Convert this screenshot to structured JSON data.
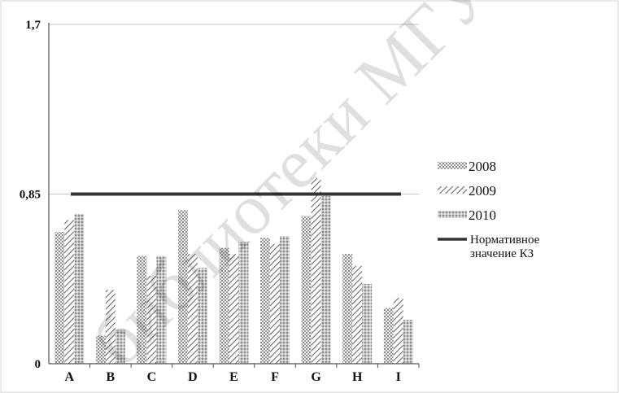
{
  "chart_data": {
    "type": "bar",
    "categories": [
      "A",
      "B",
      "C",
      "D",
      "E",
      "F",
      "G",
      "H",
      "I"
    ],
    "series": [
      {
        "name": "2008",
        "values": [
          0.66,
          0.14,
          0.54,
          0.77,
          0.58,
          0.63,
          0.74,
          0.55,
          0.28
        ],
        "pattern": "dots"
      },
      {
        "name": "2009",
        "values": [
          0.72,
          0.37,
          0.44,
          0.55,
          0.55,
          0.6,
          0.93,
          0.49,
          0.33
        ],
        "pattern": "hatch"
      },
      {
        "name": "2010",
        "values": [
          0.75,
          0.17,
          0.54,
          0.48,
          0.61,
          0.64,
          0.84,
          0.4,
          0.22
        ],
        "pattern": "cross"
      }
    ],
    "reference_line": {
      "name": "Нормативное значение КЗ",
      "name_lines": [
        "Нормативное",
        "значение КЗ"
      ],
      "value": 0.85,
      "color": "#333333"
    },
    "y_ticks": [
      "1,7",
      "0,85",
      "0"
    ],
    "y_tick_values": [
      1.7,
      0.85,
      0
    ],
    "ylim": [
      0,
      1.7
    ],
    "grid": true,
    "legend_position": "right",
    "title": "",
    "xlabel": "",
    "ylabel": ""
  },
  "watermark": {
    "text": "библиотеки МГУ им"
  }
}
